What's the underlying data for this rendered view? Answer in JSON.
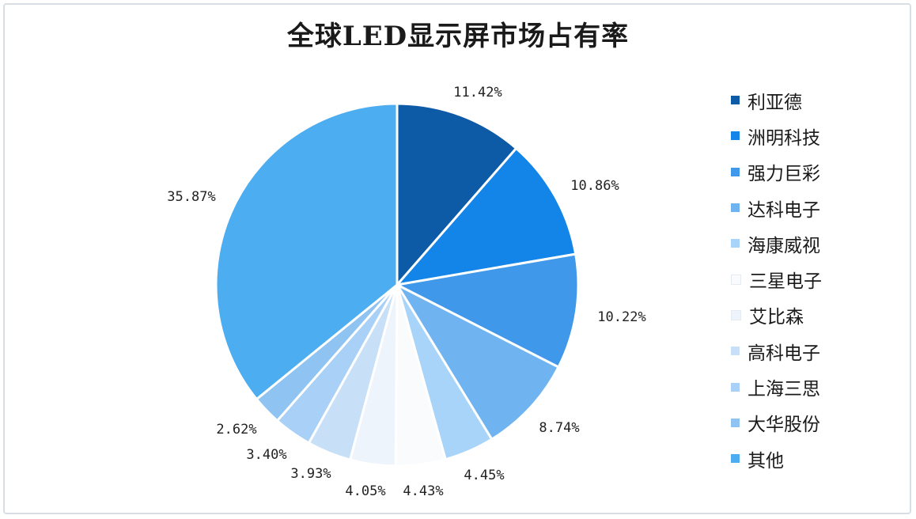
{
  "chart_data": {
    "type": "pie",
    "title": "全球LED显示屏市场占有率",
    "legend_position": "right",
    "categories": [
      "利亚德",
      "洲明科技",
      "强力巨彩",
      "达科电子",
      "海康威视",
      "三星电子",
      "艾比森",
      "高科电子",
      "上海三思",
      "大华股份",
      "其他"
    ],
    "values": [
      11.42,
      10.86,
      10.22,
      8.74,
      4.45,
      4.43,
      4.05,
      3.93,
      3.4,
      2.62,
      35.87
    ],
    "value_labels": [
      "11.42%",
      "10.86%",
      "10.22%",
      "8.74%",
      "4.45%",
      "4.43%",
      "4.05%",
      "3.93%",
      "3.40%",
      "2.62%",
      "35.87%"
    ],
    "colors": [
      "#0d5aa7",
      "#1385e8",
      "#3f98ea",
      "#6fb4f0",
      "#a7d4f8",
      "#fafbfd",
      "#eef4fb",
      "#c7e0f8",
      "#a9d0f6",
      "#8ec3f2",
      "#4cadf0"
    ]
  }
}
